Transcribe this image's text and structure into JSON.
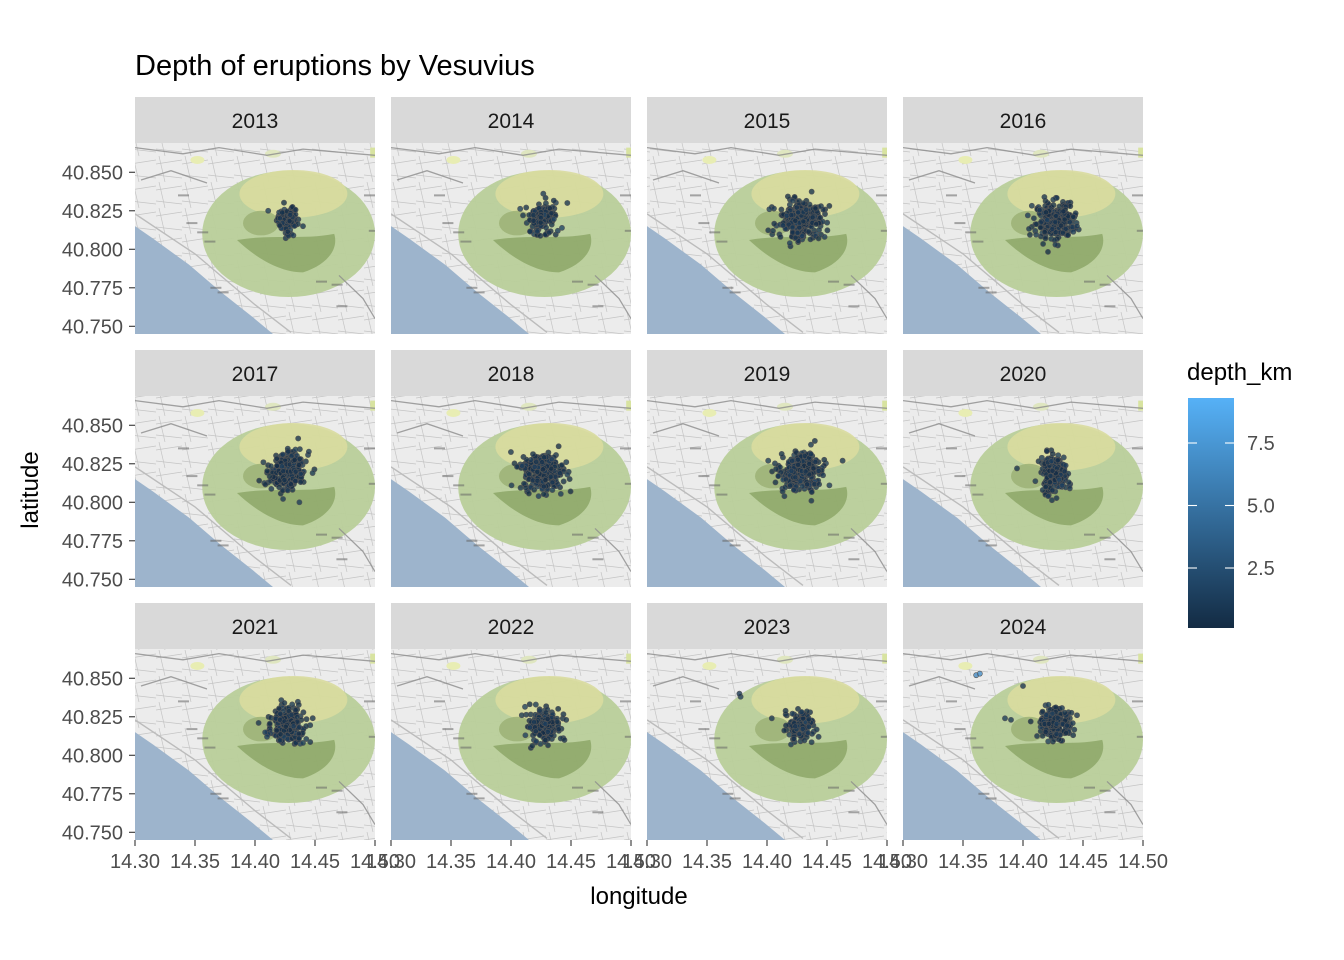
{
  "chart_data": {
    "type": "scatter",
    "title": "Depth of eruptions by Vesuvius",
    "xlabel": "longitude",
    "ylabel": "latitude",
    "xlim": [
      14.3,
      14.5
    ],
    "ylim": [
      40.745,
      40.869
    ],
    "x_ticks": [
      14.3,
      14.35,
      14.4,
      14.45,
      14.5
    ],
    "x_tick_labels": [
      "14.30",
      "14.35",
      "14.40",
      "14.45",
      "14.50"
    ],
    "y_ticks": [
      40.75,
      40.775,
      40.8,
      40.825,
      40.85
    ],
    "y_tick_labels": [
      "40.750",
      "40.775",
      "40.800",
      "40.825",
      "40.850"
    ],
    "facet_by": "year",
    "facet_layout": {
      "rows": 3,
      "cols": 4
    },
    "background": "street-map-tiles",
    "grid": false,
    "point_outline_color": "#555555",
    "legend": {
      "title": "depth_km",
      "placement": "right",
      "type": "colorbar",
      "range": [
        0.1,
        9.3
      ],
      "breaks": [
        2.5,
        5.0,
        7.5
      ],
      "break_labels": [
        "2.5",
        "5.0",
        "7.5"
      ],
      "low_color": "#132b43",
      "high_color": "#56b1f7"
    },
    "panels": [
      {
        "label": "2013",
        "center": [
          14.427,
          40.819
        ],
        "spread": [
          0.0045,
          0.0045
        ],
        "n": 90,
        "outliers": [
          [
            14.411,
            40.825
          ],
          [
            14.44,
            40.815
          ],
          [
            14.432,
            40.809
          ]
        ]
      },
      {
        "label": "2014",
        "center": [
          14.426,
          40.82
        ],
        "spread": [
          0.0055,
          0.005
        ],
        "n": 130,
        "outliers": [
          [
            14.41,
            40.822
          ],
          [
            14.439,
            40.812
          ]
        ]
      },
      {
        "label": "2015",
        "center": [
          14.428,
          40.819
        ],
        "spread": [
          0.008,
          0.006
        ],
        "n": 320,
        "outliers": [
          [
            14.402,
            40.826
          ],
          [
            14.448,
            40.808
          ],
          [
            14.405,
            40.812
          ],
          [
            14.445,
            40.828
          ],
          [
            14.419,
            40.804
          ]
        ]
      },
      {
        "label": "2016",
        "center": [
          14.427,
          40.819
        ],
        "spread": [
          0.0075,
          0.0055
        ],
        "n": 280,
        "outliers": [
          [
            14.404,
            40.822
          ],
          [
            14.445,
            40.815
          ],
          [
            14.427,
            40.803
          ]
        ]
      },
      {
        "label": "2017",
        "center": [
          14.426,
          40.821
        ],
        "spread": [
          0.0075,
          0.006
        ],
        "n": 260,
        "outliers": [
          [
            14.407,
            40.826
          ],
          [
            14.437,
            40.8
          ],
          [
            14.448,
            40.819
          ]
        ]
      },
      {
        "label": "2018",
        "center": [
          14.427,
          40.82
        ],
        "spread": [
          0.008,
          0.006
        ],
        "n": 300,
        "outliers": [
          [
            14.405,
            40.823
          ],
          [
            14.447,
            40.818
          ],
          [
            14.423,
            40.804
          ]
        ]
      },
      {
        "label": "2019",
        "center": [
          14.428,
          40.82
        ],
        "spread": [
          0.0085,
          0.006
        ],
        "n": 280,
        "outliers": [
          [
            14.401,
            40.827
          ],
          [
            14.463,
            40.827
          ],
          [
            14.437,
            40.801
          ],
          [
            14.413,
            40.807
          ],
          [
            14.452,
            40.811
          ]
        ]
      },
      {
        "label": "2020",
        "center": [
          14.426,
          40.819
        ],
        "spread": [
          0.0055,
          0.006
        ],
        "n": 200,
        "outliers": [
          [
            14.395,
            40.822
          ],
          [
            14.421,
            40.804
          ],
          [
            14.439,
            40.809
          ]
        ]
      },
      {
        "label": "2021",
        "center": [
          14.427,
          40.82
        ],
        "spread": [
          0.007,
          0.0055
        ],
        "n": 220,
        "outliers": [
          [
            14.403,
            40.821
          ],
          [
            14.41,
            40.812
          ],
          [
            14.44,
            40.808
          ],
          [
            14.431,
            40.833
          ]
        ]
      },
      {
        "label": "2022",
        "center": [
          14.428,
          40.819
        ],
        "spread": [
          0.006,
          0.005
        ],
        "n": 190,
        "outliers": [
          [
            14.409,
            40.826
          ],
          [
            14.412,
            40.813
          ],
          [
            14.421,
            40.809
          ],
          [
            14.446,
            40.823
          ]
        ]
      },
      {
        "label": "2023",
        "center": [
          14.428,
          40.82
        ],
        "spread": [
          0.0055,
          0.0045
        ],
        "n": 150,
        "outliers": [
          [
            14.378,
            40.838
          ],
          [
            14.377,
            40.84
          ],
          [
            14.404,
            40.824
          ],
          [
            14.42,
            40.807
          ],
          [
            14.443,
            40.812
          ]
        ]
      },
      {
        "label": "2024",
        "center": [
          14.427,
          40.821
        ],
        "spread": [
          0.007,
          0.005
        ],
        "n": 200,
        "outliers": [
          [
            14.4,
            40.845
          ],
          [
            14.385,
            40.824
          ],
          [
            14.39,
            40.823
          ],
          [
            14.445,
            40.826
          ],
          [
            14.421,
            40.809
          ],
          [
            14.361,
            40.852,
            6.5
          ],
          [
            14.364,
            40.853,
            6.8
          ]
        ]
      }
    ]
  }
}
